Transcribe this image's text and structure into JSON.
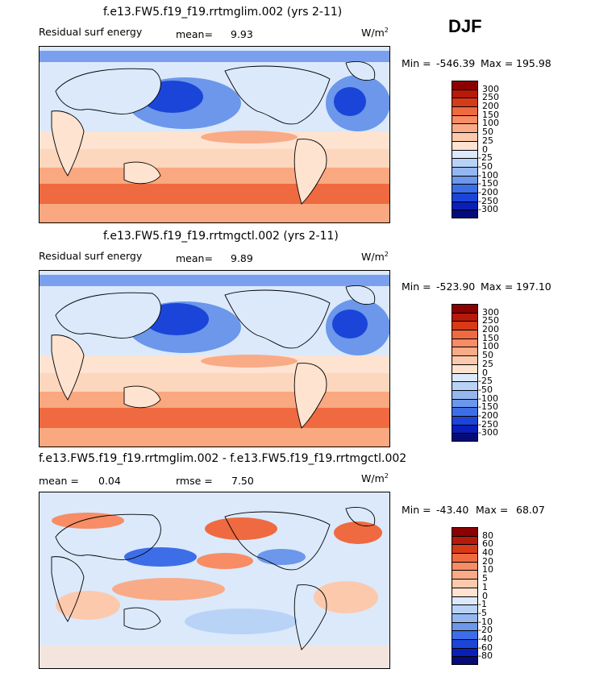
{
  "figure": {
    "season": "DJF",
    "units_base": "W/m",
    "units_exp": "2"
  },
  "chart_data": [
    {
      "type": "heatmap",
      "title": "f.e13.FW5.f19_f19.rrtmglim.002 (yrs 2-11)",
      "subtitle": "Residual surf energy",
      "mean_label": "mean=",
      "mean_value": "9.93",
      "min_label": "Min =",
      "min_value": "-546.39",
      "max_label": "Max =",
      "max_value": "195.98",
      "colorbar_labels": [
        "300",
        "250",
        "200",
        "150",
        "100",
        "50",
        "25",
        "0",
        "-25",
        "-50",
        "-100",
        "-150",
        "-200",
        "-250",
        "-300"
      ],
      "colorbar_colors": [
        "#8b0000",
        "#b51a0b",
        "#d63a17",
        "#ef6a40",
        "#f78c65",
        "#f9aa87",
        "#fcc9ad",
        "#fde3d0",
        "#dbe9fb",
        "#b9d3f7",
        "#94b7ef",
        "#6c97ea",
        "#3d6ee8",
        "#1a45d8",
        "#0a1fb8",
        "#050c7a"
      ],
      "field": "residual surface energy, strong negative over northern mid-latitude oceans (Kuroshio, Gulf Stream), positive over tropical and southern oceans"
    },
    {
      "type": "heatmap",
      "title": "f.e13.FW5.f19_f19.rrtmgctl.002 (yrs 2-11)",
      "subtitle": "Residual surf energy",
      "mean_label": "mean=",
      "mean_value": "9.89",
      "min_label": "Min =",
      "min_value": "-523.90",
      "max_label": "Max =",
      "max_value": "197.10",
      "colorbar_labels": [
        "300",
        "250",
        "200",
        "150",
        "100",
        "50",
        "25",
        "0",
        "-25",
        "-50",
        "-100",
        "-150",
        "-200",
        "-250",
        "-300"
      ],
      "colorbar_colors": [
        "#8b0000",
        "#b51a0b",
        "#d63a17",
        "#ef6a40",
        "#f78c65",
        "#f9aa87",
        "#fcc9ad",
        "#fde3d0",
        "#dbe9fb",
        "#b9d3f7",
        "#94b7ef",
        "#6c97ea",
        "#3d6ee8",
        "#1a45d8",
        "#0a1fb8",
        "#050c7a"
      ],
      "field": "residual surface energy, control run; pattern nearly identical to panel 1"
    },
    {
      "type": "heatmap",
      "title": "f.e13.FW5.f19_f19.rrtmglim.002 - f.e13.FW5.f19_f19.rrtmgctl.002",
      "mean_label": "mean =",
      "mean_value": "0.04",
      "rmse_label": "rmse =",
      "rmse_value": "7.50",
      "min_label": "Min =",
      "min_value": "-43.40",
      "max_label": "Max =",
      "max_value": "68.07",
      "colorbar_labels": [
        "80",
        "60",
        "40",
        "20",
        "10",
        "5",
        "1",
        "0",
        "-1",
        "-5",
        "-10",
        "-20",
        "-40",
        "-60",
        "-80"
      ],
      "colorbar_colors": [
        "#8b0000",
        "#b51a0b",
        "#d63a17",
        "#ef6a40",
        "#f78c65",
        "#f9aa87",
        "#fcc9ad",
        "#fde3d0",
        "#dbe9fb",
        "#b9d3f7",
        "#94b7ef",
        "#6c97ea",
        "#3d6ee8",
        "#1a45d8",
        "#0a1fb8",
        "#050c7a"
      ],
      "field": "difference field, noisy mixed positive/negative anomalies"
    }
  ]
}
